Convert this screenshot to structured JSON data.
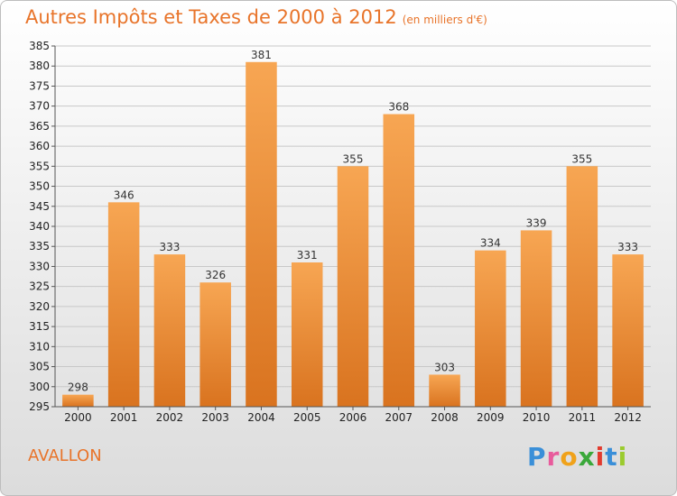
{
  "title": "Autres Impôts et Taxes de 2000 à 2012",
  "subtitle": "(en milliers d'€)",
  "commune": "AVALLON",
  "logo": {
    "letters": [
      "P",
      "r",
      "o",
      "x",
      "i",
      "t",
      "i"
    ],
    "colors": [
      "#3a8fd8",
      "#e85b9c",
      "#f0a21a",
      "#3aa83a",
      "#e23b2e",
      "#3a8fd8",
      "#9bcb2e"
    ]
  },
  "colors": {
    "bar_top": "#f7a653",
    "bar_bottom": "#d9731f",
    "grid": "#c8c8c8",
    "title": "#e8742a"
  },
  "chart_data": {
    "type": "bar",
    "categories": [
      "2000",
      "2001",
      "2002",
      "2003",
      "2004",
      "2005",
      "2006",
      "2007",
      "2008",
      "2009",
      "2010",
      "2011",
      "2012"
    ],
    "values": [
      298,
      346,
      333,
      326,
      381,
      331,
      355,
      368,
      303,
      334,
      339,
      355,
      333
    ],
    "ylim": [
      295,
      385
    ],
    "ytick_step": 5,
    "grid": true,
    "xlabel": "",
    "ylabel": ""
  }
}
